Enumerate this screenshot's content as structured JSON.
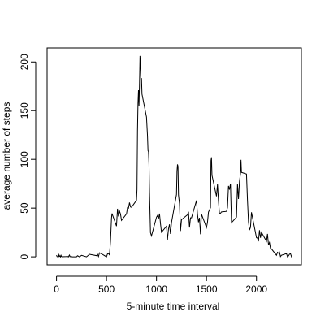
{
  "chart_data": {
    "type": "line",
    "x_label": "5-minute time interval",
    "y_label": "average number of steps",
    "color": "#000000",
    "xlim": [
      -94.2,
      2449.2
    ],
    "ylim": [
      -8.25,
      214.4
    ],
    "xticks": [
      0,
      500,
      1000,
      1500,
      2000
    ],
    "yticks": [
      0,
      50,
      100,
      150,
      200
    ],
    "x": [
      0,
      5,
      10,
      15,
      20,
      25,
      30,
      35,
      40,
      45,
      50,
      55,
      100,
      105,
      110,
      115,
      120,
      125,
      130,
      135,
      140,
      145,
      150,
      155,
      200,
      210,
      230,
      250,
      300,
      330,
      400,
      410,
      420,
      430,
      440,
      450,
      500,
      510,
      520,
      530,
      540,
      550,
      555,
      600,
      610,
      620,
      630,
      640,
      650,
      700,
      710,
      720,
      730,
      740,
      750,
      800,
      805,
      810,
      815,
      820,
      825,
      830,
      835,
      840,
      845,
      850,
      855,
      900,
      910,
      915,
      920,
      925,
      930,
      940,
      950,
      1000,
      1010,
      1020,
      1030,
      1040,
      1050,
      1100,
      1110,
      1120,
      1130,
      1140,
      1150,
      1200,
      1205,
      1210,
      1215,
      1220,
      1230,
      1240,
      1250,
      1300,
      1310,
      1320,
      1330,
      1340,
      1350,
      1400,
      1410,
      1420,
      1430,
      1440,
      1450,
      1500,
      1510,
      1520,
      1530,
      1540,
      1545,
      1550,
      1555,
      1600,
      1610,
      1620,
      1630,
      1640,
      1650,
      1700,
      1710,
      1720,
      1730,
      1740,
      1750,
      1800,
      1810,
      1820,
      1830,
      1840,
      1845,
      1850,
      1900,
      1910,
      1920,
      1930,
      1940,
      1950,
      2000,
      2010,
      2020,
      2030,
      2040,
      2050,
      2100,
      2110,
      2120,
      2130,
      2140,
      2150,
      2200,
      2210,
      2220,
      2230,
      2240,
      2250,
      2300,
      2310,
      2320,
      2330,
      2340,
      2350,
      2355
    ],
    "values": [
      1.7,
      0.3,
      0.1,
      0.2,
      0.1,
      2.1,
      0.5,
      0.9,
      0,
      1.5,
      0.3,
      0.1,
      0.3,
      0.7,
      0.2,
      0.3,
      0,
      1.1,
      1.8,
      0.2,
      0.2,
      0.4,
      0.3,
      0,
      0,
      1.1,
      0,
      1.5,
      0,
      2.6,
      1.2,
      2.6,
      0.4,
      4.1,
      3.5,
      3.1,
      0,
      3.0,
      3.3,
      2.1,
      16,
      39.5,
      44.5,
      31.5,
      49.3,
      41.4,
      47,
      44,
      37.4,
      44,
      50.5,
      49.9,
      55.7,
      51.2,
      50.8,
      58,
      69,
      129,
      157.5,
      171,
      155,
      177,
      206.2,
      195.9,
      179.6,
      183.4,
      167,
      143.5,
      124,
      109,
      108,
      95,
      66,
      24.8,
      21.5,
      40.6,
      42.4,
      38.9,
      44.3,
      34,
      25.2,
      31.4,
      17.6,
      28.6,
      33.3,
      23.5,
      35.1,
      63.9,
      87.7,
      94.8,
      92.8,
      63.4,
      54.5,
      26.5,
      38,
      42.3,
      43,
      46.2,
      30,
      40,
      40,
      57.8,
      43.6,
      35.5,
      40,
      23.2,
      43.8,
      30,
      35.5,
      45.9,
      48.1,
      50.4,
      98.7,
      102.1,
      83.6,
      62.1,
      74.5,
      56.9,
      44,
      44.7,
      46.1,
      46.6,
      50.5,
      72.7,
      68.9,
      75.1,
      35,
      40.7,
      74.7,
      59.3,
      77.4,
      85.3,
      99.5,
      86.6,
      84.9,
      58,
      36.1,
      27.4,
      30.2,
      45.7,
      19.6,
      19.3,
      15.9,
      27.3,
      19.5,
      25.1,
      15.9,
      23.5,
      12.3,
      14.7,
      8.7,
      8.1,
      1.6,
      4.6,
      3.7,
      4.8,
      0.3,
      1.6,
      3.3,
      0,
      1,
      2.6,
      3.3,
      0.2,
      1.1
    ]
  }
}
